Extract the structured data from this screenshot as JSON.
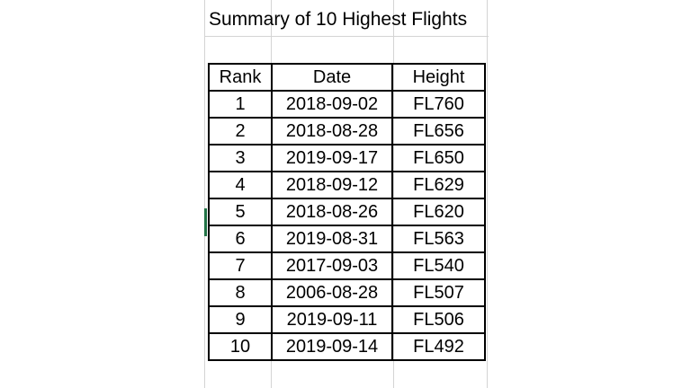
{
  "sheet": {
    "title": "Summary of 10 Highest Flights",
    "headers": {
      "rank": "Rank",
      "date": "Date",
      "height": "Height"
    },
    "rows": [
      {
        "rank": "1",
        "date": "2018-09-02",
        "height": "FL760"
      },
      {
        "rank": "2",
        "date": "2018-08-28",
        "height": "FL656"
      },
      {
        "rank": "3",
        "date": "2019-09-17",
        "height": "FL650"
      },
      {
        "rank": "4",
        "date": "2018-09-12",
        "height": "FL629"
      },
      {
        "rank": "5",
        "date": "2018-08-26",
        "height": "FL620"
      },
      {
        "rank": "6",
        "date": "2019-08-31",
        "height": "FL563"
      },
      {
        "rank": "7",
        "date": "2017-09-03",
        "height": "FL540"
      },
      {
        "rank": "8",
        "date": "2006-08-28",
        "height": "FL507"
      },
      {
        "rank": "9",
        "date": "2019-09-11",
        "height": "FL506"
      },
      {
        "rank": "10",
        "date": "2019-09-14",
        "height": "FL492"
      }
    ],
    "active_cell_color": "#217346"
  }
}
